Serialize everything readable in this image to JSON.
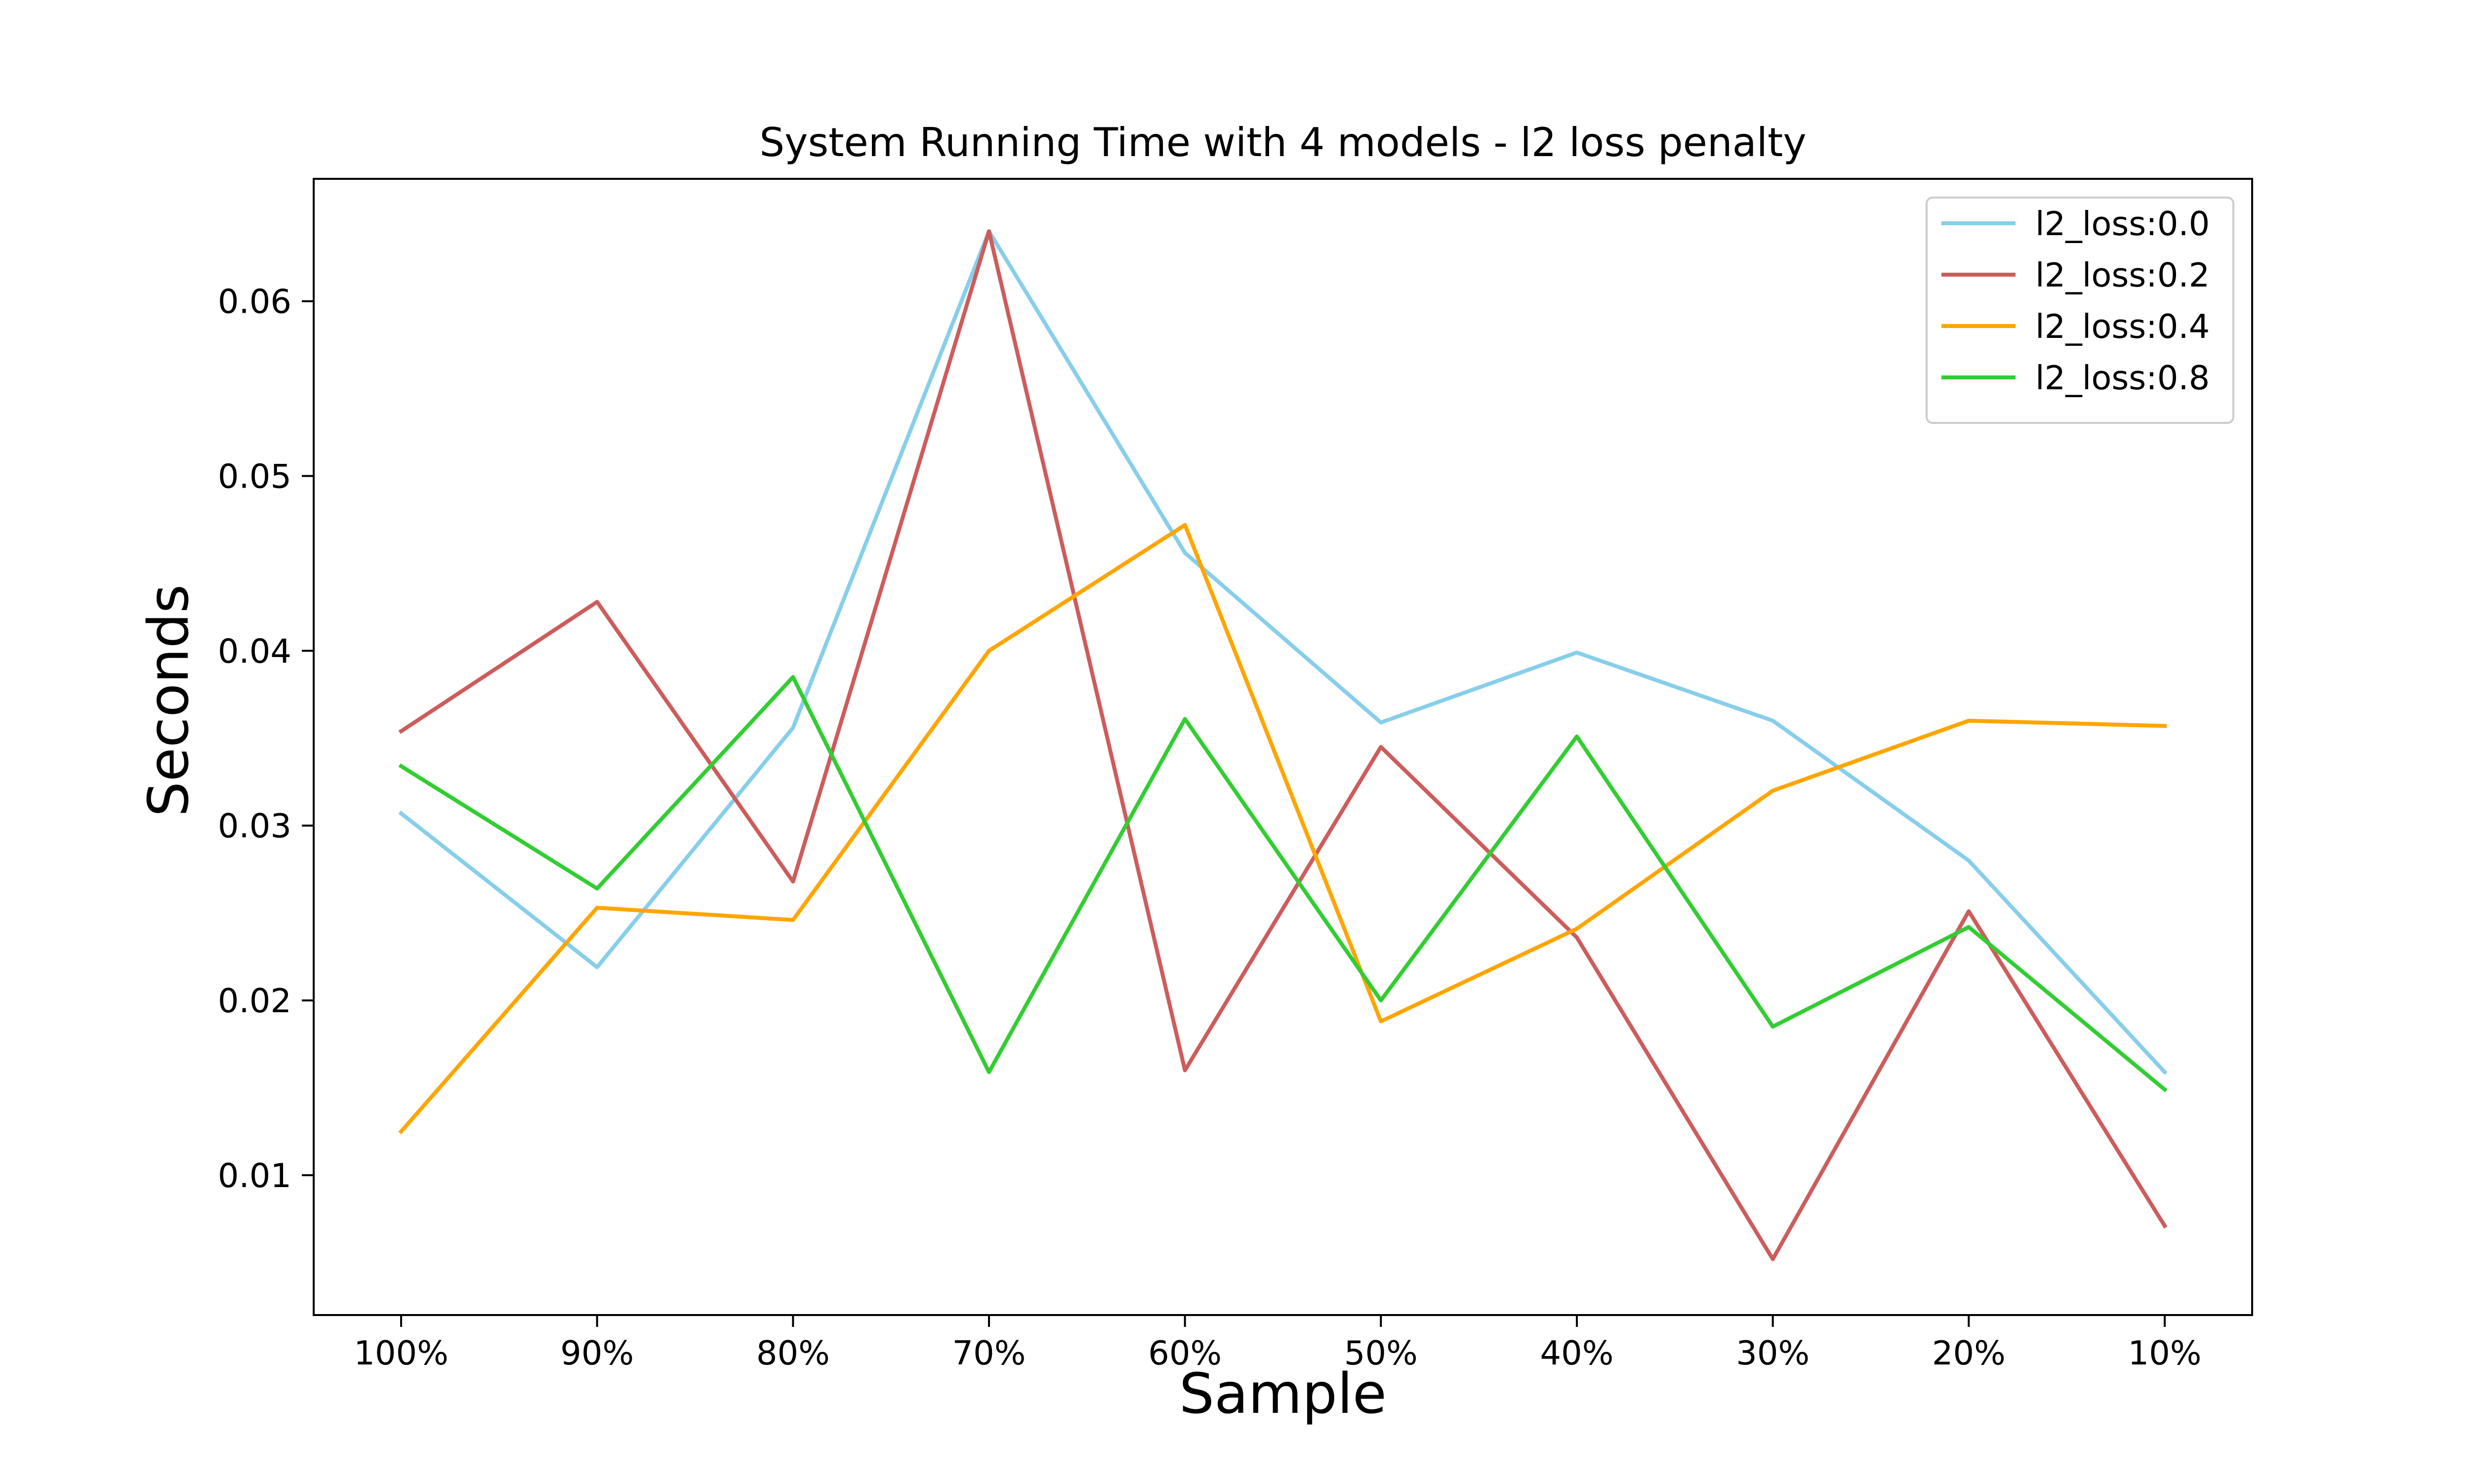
{
  "chart_data": {
    "type": "line",
    "title": "System Running Time with 4 models - l2 loss penalty",
    "xlabel": "Sample",
    "ylabel": "Seconds",
    "categories": [
      "100%",
      "90%",
      "80%",
      "70%",
      "60%",
      "50%",
      "40%",
      "30%",
      "20%",
      "10%"
    ],
    "ylim": [
      0.002,
      0.067
    ],
    "yticks": [
      "0.01",
      "0.02",
      "0.03",
      "0.04",
      "0.05",
      "0.06"
    ],
    "ytick_values": [
      0.01,
      0.02,
      0.03,
      0.04,
      0.05,
      0.06
    ],
    "grid": false,
    "legend_position": "top-right",
    "series": [
      {
        "name": "l2_loss:0.0",
        "color": "#87ceeb",
        "values": [
          0.0307,
          0.0219,
          0.0356,
          0.064,
          0.0456,
          0.0359,
          0.0399,
          0.036,
          0.028,
          0.0159
        ]
      },
      {
        "name": "l2_loss:0.2",
        "color": "#cd5c5c",
        "values": [
          0.0354,
          0.0428,
          0.0268,
          0.064,
          0.016,
          0.0345,
          0.0236,
          0.0052,
          0.0251,
          0.0071
        ]
      },
      {
        "name": "l2_loss:0.4",
        "color": "#ffa500",
        "values": [
          0.0125,
          0.0253,
          0.0246,
          0.04,
          0.0472,
          0.0188,
          0.0241,
          0.032,
          0.036,
          0.0357
        ]
      },
      {
        "name": "l2_loss:0.8",
        "color": "#32cd32",
        "values": [
          0.0334,
          0.0264,
          0.0385,
          0.0159,
          0.0361,
          0.02,
          0.0351,
          0.0185,
          0.0242,
          0.0149
        ]
      }
    ]
  }
}
